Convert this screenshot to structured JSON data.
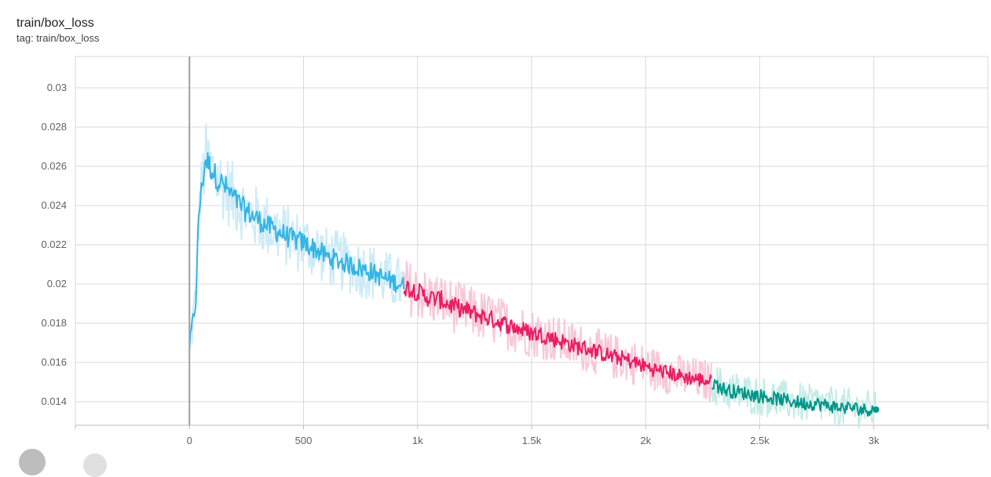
{
  "card": {
    "title": "train/box_loss",
    "tag": "tag: train/box_loss"
  },
  "chart_data": {
    "type": "line",
    "title": "train/box_loss",
    "xlabel": "",
    "ylabel": "",
    "xlim": [
      -500,
      3500
    ],
    "ylim": [
      0.0128,
      0.0316
    ],
    "x_ticks": [
      0,
      500,
      1000,
      1500,
      2000,
      2500,
      3000
    ],
    "x_tick_labels": [
      "0",
      "500",
      "1k",
      "1.5k",
      "2k",
      "2.5k",
      "3k"
    ],
    "y_ticks": [
      0.014,
      0.016,
      0.018,
      0.02,
      0.022,
      0.024,
      0.026,
      0.028,
      0.03
    ],
    "y_tick_labels": [
      "0.014",
      "0.016",
      "0.018",
      "0.02",
      "0.022",
      "0.024",
      "0.026",
      "0.028",
      "0.03"
    ],
    "grid": true,
    "series": [
      {
        "color": "#33b5e5",
        "raw_color": "#cdebf7",
        "x": [
          0,
          10,
          20,
          30,
          40,
          55,
          70,
          90,
          120,
          160,
          200,
          250,
          300,
          350,
          400,
          450,
          500,
          550,
          600,
          650,
          700,
          750,
          800,
          850,
          900,
          940
        ],
        "y": [
          0.0168,
          0.0177,
          0.0185,
          0.0194,
          0.0235,
          0.025,
          0.0264,
          0.026,
          0.0254,
          0.0249,
          0.0243,
          0.0237,
          0.0233,
          0.0229,
          0.0226,
          0.0223,
          0.0221,
          0.0218,
          0.0214,
          0.0212,
          0.021,
          0.0208,
          0.0206,
          0.0203,
          0.0201,
          0.0199
        ]
      },
      {
        "color": "#e91e63",
        "raw_color": "#f8c8d9",
        "x": [
          940,
          1000,
          1050,
          1100,
          1150,
          1200,
          1250,
          1300,
          1350,
          1400,
          1450,
          1500,
          1550,
          1600,
          1650,
          1700,
          1750,
          1800,
          1850,
          1900,
          1950,
          2000,
          2050,
          2100,
          2150,
          2200,
          2250,
          2290
        ],
        "y": [
          0.0199,
          0.0196,
          0.0193,
          0.0192,
          0.0189,
          0.0187,
          0.0185,
          0.0183,
          0.0181,
          0.0179,
          0.0177,
          0.0175,
          0.0174,
          0.0172,
          0.017,
          0.0168,
          0.0167,
          0.0165,
          0.0163,
          0.0162,
          0.016,
          0.0158,
          0.0156,
          0.0155,
          0.0153,
          0.0152,
          0.0151,
          0.015
        ]
      },
      {
        "color": "#009688",
        "raw_color": "#c6ece7",
        "x": [
          2290,
          2350,
          2400,
          2450,
          2500,
          2550,
          2600,
          2650,
          2700,
          2750,
          2800,
          2850,
          2900,
          2950,
          3000,
          3010
        ],
        "y": [
          0.015,
          0.0146,
          0.0145,
          0.0144,
          0.0143,
          0.0142,
          0.0141,
          0.014,
          0.0139,
          0.0139,
          0.0138,
          0.0137,
          0.0137,
          0.0136,
          0.0136,
          0.0136
        ]
      }
    ]
  }
}
